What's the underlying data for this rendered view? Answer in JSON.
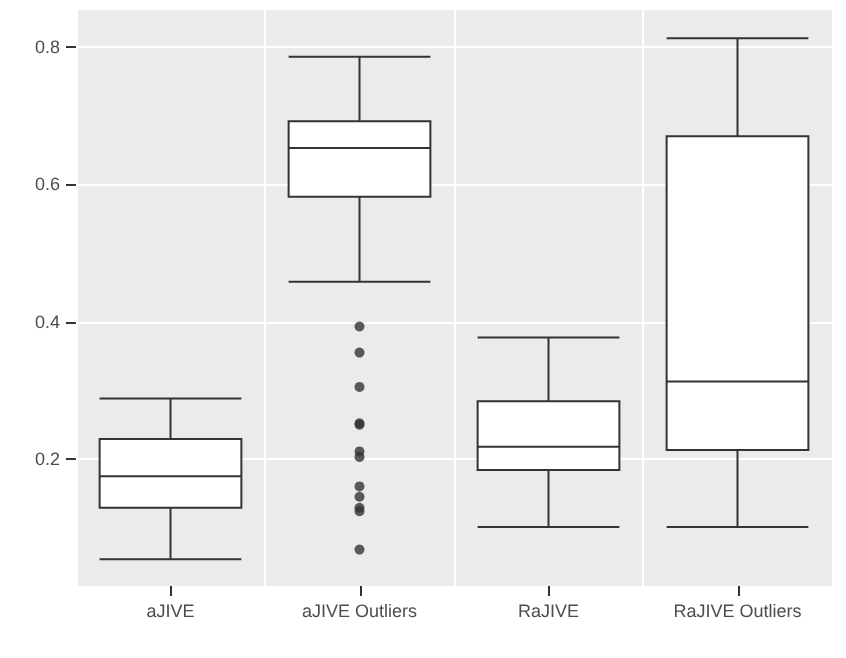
{
  "chart_data": {
    "type": "box",
    "categories": [
      "aJIVE",
      "aJIVE Outliers",
      "RaJIVE",
      "RaJIVE Outliers"
    ],
    "boxes": [
      {
        "low": 0.054,
        "q1": 0.129,
        "median": 0.175,
        "q3": 0.229,
        "high": 0.288
      },
      {
        "low": 0.458,
        "q1": 0.582,
        "median": 0.653,
        "q3": 0.692,
        "high": 0.786,
        "outliers": [
          0.393,
          0.355,
          0.305,
          0.252,
          0.25,
          0.211,
          0.203,
          0.16,
          0.145,
          0.129,
          0.124,
          0.068
        ]
      },
      {
        "low": 0.101,
        "q1": 0.184,
        "median": 0.218,
        "q3": 0.284,
        "high": 0.377
      },
      {
        "low": 0.101,
        "q1": 0.213,
        "median": 0.313,
        "q3": 0.67,
        "high": 0.813
      }
    ],
    "ylim": [
      0.015,
      0.854
    ],
    "yticks": [
      0.2,
      0.4,
      0.6,
      0.8
    ],
    "grid": true
  }
}
